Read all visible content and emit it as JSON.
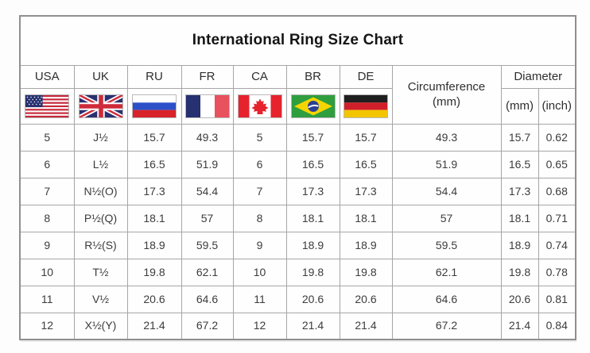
{
  "title": "International Ring Size Chart",
  "table": {
    "country_columns": [
      {
        "code": "USA",
        "flag": "usa-flag-icon"
      },
      {
        "code": "UK",
        "flag": "uk-flag-icon"
      },
      {
        "code": "RU",
        "flag": "russia-flag-icon"
      },
      {
        "code": "FR",
        "flag": "france-flag-icon"
      },
      {
        "code": "CA",
        "flag": "canada-flag-icon"
      },
      {
        "code": "BR",
        "flag": "brazil-flag-icon"
      },
      {
        "code": "DE",
        "flag": "germany-flag-icon"
      }
    ],
    "circumference_header": {
      "line1": "Circumference",
      "line2": "(mm)"
    },
    "diameter_header": {
      "label": "Diameter",
      "units": [
        "(mm)",
        "(inch)"
      ]
    },
    "column_meaning": [
      "USA",
      "UK",
      "RU",
      "FR",
      "CA",
      "BR",
      "DE",
      "Circumference (mm)",
      "Diameter (mm)",
      "Diameter (inch)"
    ],
    "rows": [
      [
        "5",
        "J½",
        "15.7",
        "49.3",
        "5",
        "15.7",
        "15.7",
        "49.3",
        "15.7",
        "0.62"
      ],
      [
        "6",
        "L½",
        "16.5",
        "51.9",
        "6",
        "16.5",
        "16.5",
        "51.9",
        "16.5",
        "0.65"
      ],
      [
        "7",
        "N½(O)",
        "17.3",
        "54.4",
        "7",
        "17.3",
        "17.3",
        "54.4",
        "17.3",
        "0.68"
      ],
      [
        "8",
        "P½(Q)",
        "18.1",
        "57",
        "8",
        "18.1",
        "18.1",
        "57",
        "18.1",
        "0.71"
      ],
      [
        "9",
        "R½(S)",
        "18.9",
        "59.5",
        "9",
        "18.9",
        "18.9",
        "59.5",
        "18.9",
        "0.74"
      ],
      [
        "10",
        "T½",
        "19.8",
        "62.1",
        "10",
        "19.8",
        "19.8",
        "62.1",
        "19.8",
        "0.78"
      ],
      [
        "11",
        "V½",
        "20.6",
        "64.6",
        "11",
        "20.6",
        "20.6",
        "64.6",
        "20.6",
        "0.81"
      ],
      [
        "12",
        "X½(Y)",
        "21.4",
        "67.2",
        "12",
        "21.4",
        "21.4",
        "67.2",
        "21.4",
        "0.84"
      ]
    ]
  },
  "colors": {
    "border": "#a6a6a6",
    "outer_border": "#8f8f8f",
    "text": "#3a3a3a",
    "flag_red": "#d8232a",
    "flag_navy": "#2b3272",
    "flag_green": "#2f9e3f",
    "flag_yellow": "#f4d500",
    "flag_gold": "#f2c500"
  }
}
